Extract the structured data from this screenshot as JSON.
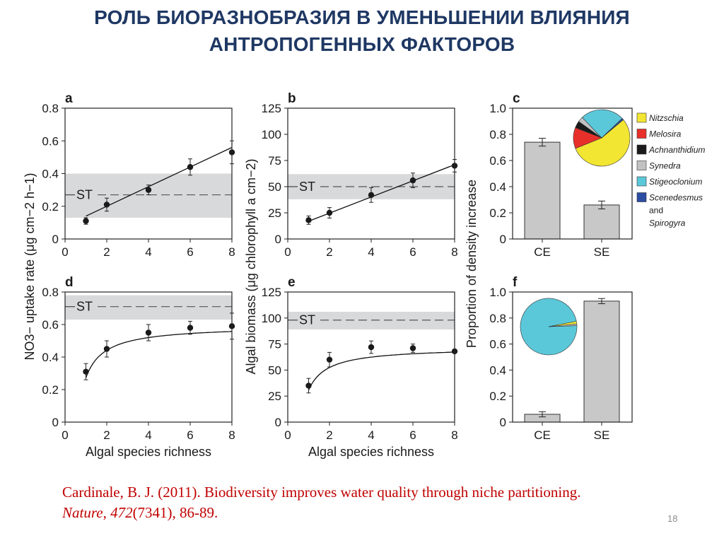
{
  "slide": {
    "title_line1": "РОЛЬ БИОРАЗНОБРАЗИЯ В УМЕНЬШЕНИИ ВЛИЯНИЯ",
    "title_line2": "АНТРОПОГЕННЫХ ФАКТОРОВ",
    "page_number": "18",
    "colors": {
      "title": "#1f3864",
      "citation": "#c00000"
    }
  },
  "citation": {
    "authors": "Cardinale, B. J. (2011). Biodiversity improves water quality through niche partitioning. ",
    "journal": "Nature",
    "sep": ", ",
    "volume": "472",
    "rest": "(7341), 86-89."
  },
  "shared": {
    "xlabel": "Algal species richness",
    "ylabel_ad": "NO3− uptake rate (μg cm−2 h−1)",
    "ylabel_be": "Algal biomass (μg chlorophyll a cm−2)",
    "ylabel_cf": "Proportion of density increase"
  },
  "chart_data": [
    {
      "panel": "a",
      "type": "scatter",
      "xlim": [
        0,
        8
      ],
      "ylim": [
        0,
        0.8
      ],
      "xticks": [
        "0",
        "2",
        "4",
        "6",
        "8"
      ],
      "yticks": [
        "0",
        "0.2",
        "0.4",
        "0.6",
        "0.8"
      ],
      "x": [
        1,
        2,
        4,
        6,
        8
      ],
      "y": [
        0.11,
        0.21,
        0.3,
        0.44,
        0.53
      ],
      "err": [
        0.02,
        0.04,
        0.03,
        0.05,
        0.07
      ],
      "fit": "linear",
      "fit_from": [
        1,
        0.14
      ],
      "fit_to": [
        8,
        0.56
      ],
      "st_label": "ST",
      "st_value": 0.27,
      "st_band": [
        0.13,
        0.4
      ]
    },
    {
      "panel": "b",
      "type": "scatter",
      "xlim": [
        0,
        8
      ],
      "ylim": [
        0,
        125
      ],
      "xticks": [
        "0",
        "2",
        "4",
        "6",
        "8"
      ],
      "yticks": [
        "0",
        "25",
        "50",
        "75",
        "100",
        "125"
      ],
      "x": [
        1,
        2,
        4,
        6,
        8
      ],
      "y": [
        18,
        25,
        42,
        56,
        70
      ],
      "err": [
        4,
        5,
        7,
        7,
        6
      ],
      "fit": "linear",
      "fit_from": [
        1,
        17
      ],
      "fit_to": [
        8,
        71
      ],
      "st_label": "ST",
      "st_value": 50,
      "st_band": [
        38,
        62
      ]
    },
    {
      "panel": "c",
      "type": "bar",
      "categories": [
        "CE",
        "SE"
      ],
      "values": [
        0.74,
        0.26
      ],
      "err": [
        0.03,
        0.03
      ],
      "ylim": [
        0,
        1.0
      ],
      "yticks": [
        "0",
        "0.2",
        "0.4",
        "0.6",
        "0.8",
        "1.0"
      ],
      "pie": {
        "labels": [
          "Nitzschia",
          "Melosira",
          "Achnanthidium",
          "Synedra",
          "Stigeoclonium",
          "Scenedesmus and Spirogyra"
        ],
        "values": [
          0.55,
          0.12,
          0.04,
          0.03,
          0.25,
          0.01
        ],
        "colors": [
          "#f2e632",
          "#e8302a",
          "#1a1a1a",
          "#c2c2c2",
          "#5bc8da",
          "#2b4da3"
        ]
      }
    },
    {
      "panel": "d",
      "type": "scatter",
      "xlim": [
        0,
        8
      ],
      "ylim": [
        0,
        0.8
      ],
      "xticks": [
        "0",
        "2",
        "4",
        "6",
        "8"
      ],
      "yticks": [
        "0",
        "0.2",
        "0.4",
        "0.6",
        "0.8"
      ],
      "x": [
        1,
        2,
        4,
        6,
        8
      ],
      "y": [
        0.31,
        0.45,
        0.55,
        0.58,
        0.59
      ],
      "err": [
        0.05,
        0.05,
        0.05,
        0.04,
        0.08
      ],
      "fit": "saturating",
      "st_label": "ST",
      "st_value": 0.71,
      "st_band": [
        0.63,
        0.78
      ]
    },
    {
      "panel": "e",
      "type": "scatter",
      "xlim": [
        0,
        8
      ],
      "ylim": [
        0,
        125
      ],
      "xticks": [
        "0",
        "2",
        "4",
        "6",
        "8"
      ],
      "yticks": [
        "0",
        "25",
        "50",
        "75",
        "100",
        "125"
      ],
      "x": [
        1,
        2,
        4,
        6,
        8
      ],
      "y": [
        35,
        60,
        72,
        71,
        68
      ],
      "err": [
        7,
        7,
        6,
        4,
        0
      ],
      "fit": "saturating",
      "st_label": "ST",
      "st_value": 98,
      "st_band": [
        89,
        106
      ]
    },
    {
      "panel": "f",
      "type": "bar",
      "categories": [
        "CE",
        "SE"
      ],
      "values": [
        0.06,
        0.93
      ],
      "err": [
        0.02,
        0.02
      ],
      "ylim": [
        0,
        1.0
      ],
      "yticks": [
        "0",
        "0.2",
        "0.4",
        "0.6",
        "0.8",
        "1.0"
      ],
      "pie": {
        "labels": [
          "Stigeoclonium",
          "Nitzschia",
          "Synedra"
        ],
        "values": [
          0.975,
          0.015,
          0.01
        ],
        "colors": [
          "#5bc8da",
          "#f2e632",
          "#c2c2c2"
        ]
      }
    }
  ]
}
